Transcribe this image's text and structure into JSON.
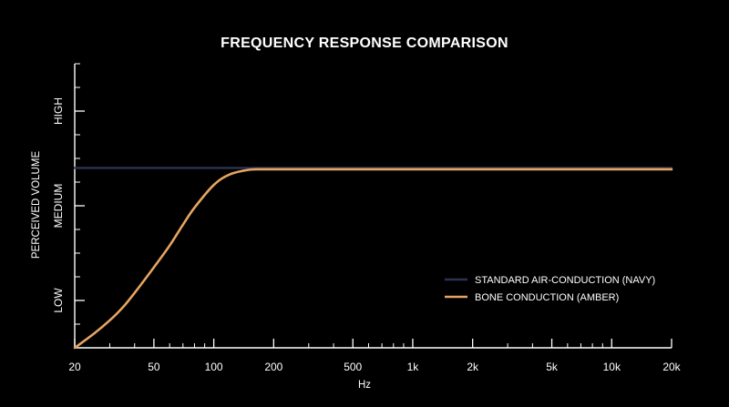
{
  "colors": {
    "background": "#000000",
    "axis": "#ffffff",
    "standard": "#2a3450",
    "bone": "#e6a462"
  },
  "chart_data": {
    "type": "line",
    "title": "FREQUENCY RESPONSE COMPARISON",
    "xlabel": "Hz",
    "ylabel": "PERCEIVED VOLUME",
    "x_scale": "log",
    "xlim": [
      20,
      20000
    ],
    "x_ticks": [
      20,
      50,
      100,
      200,
      500,
      1000,
      2000,
      5000,
      10000,
      20000
    ],
    "x_tick_labels": [
      "20",
      "50",
      "100",
      "200",
      "500",
      "1k",
      "2k",
      "5k",
      "10k",
      "20k"
    ],
    "ylim": [
      0,
      3
    ],
    "y_ticks": [
      0.5,
      1.5,
      2.5
    ],
    "y_tick_labels": [
      "LOW",
      "MEDIUM",
      "HIGH"
    ],
    "legend_position": "bottom-right",
    "grid": false,
    "series": [
      {
        "name": "STANDARD AIR-CONDUCTION (NAVY)",
        "color": "#2a3450",
        "x": [
          20,
          50,
          100,
          200,
          500,
          1000,
          2000,
          5000,
          10000,
          20000
        ],
        "y": [
          1.9,
          1.9,
          1.9,
          1.9,
          1.9,
          1.9,
          1.9,
          1.9,
          1.9,
          1.9
        ]
      },
      {
        "name": "BONE CONDUCTION (AMBER)",
        "color": "#e6a462",
        "x": [
          20,
          25,
          30,
          35,
          40,
          50,
          60,
          70,
          80,
          100,
          120,
          150,
          180,
          200,
          500,
          1000,
          2000,
          5000,
          10000,
          20000
        ],
        "y": [
          0,
          0.15,
          0.29,
          0.43,
          0.58,
          0.85,
          1.08,
          1.3,
          1.48,
          1.72,
          1.83,
          1.88,
          1.885,
          1.885,
          1.885,
          1.885,
          1.885,
          1.885,
          1.885,
          1.885
        ]
      }
    ]
  }
}
